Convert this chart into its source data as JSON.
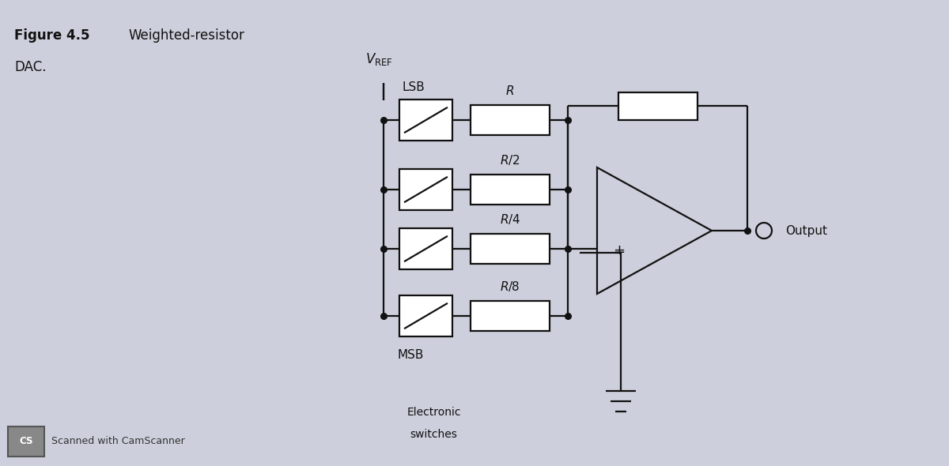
{
  "background_color": "#cdd0dc",
  "line_color": "#111111",
  "fig_width": 12.0,
  "fig_height": 5.9,
  "labels": {
    "vref_V": "$V$",
    "vref_sub": "REF",
    "lsb": "LSB",
    "msb": "MSB",
    "r1": "$R$",
    "r2": "$R/2$",
    "r3": "$R/4$",
    "r4": "$R/8$",
    "output": "Output",
    "switches_line1": "Electronic",
    "switches_line2": "switches",
    "fig_bold": "Figure 4.5",
    "fig_normal": "  Weighted-resistor",
    "fig_dac": "DAC."
  },
  "xlim": [
    0,
    12
  ],
  "ylim": [
    0,
    5.9
  ]
}
